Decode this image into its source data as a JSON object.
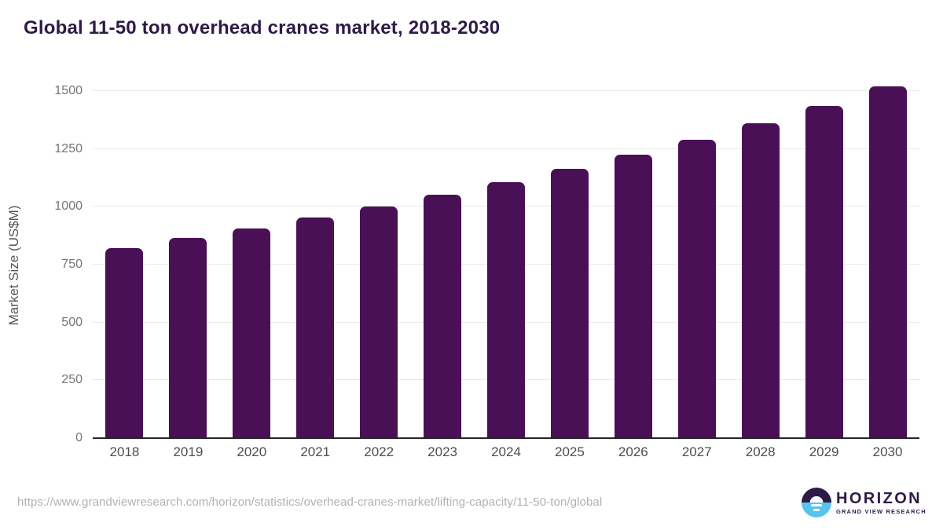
{
  "header": {
    "title": "Global 11-50 ton overhead cranes market, 2018-2030"
  },
  "chart_data": {
    "type": "bar",
    "title": "Global 11-50 ton overhead cranes market, 2018-2030",
    "categories": [
      "2018",
      "2019",
      "2020",
      "2021",
      "2022",
      "2023",
      "2024",
      "2025",
      "2026",
      "2027",
      "2028",
      "2029",
      "2030"
    ],
    "values": [
      822,
      866,
      906,
      955,
      1002,
      1052,
      1107,
      1164,
      1226,
      1291,
      1362,
      1436,
      1521
    ],
    "xlabel": "",
    "ylabel": "Market Size (US$M)",
    "ylim": [
      0,
      1500
    ],
    "yticks": [
      0,
      250,
      500,
      750,
      1000,
      1250,
      1500
    ],
    "grid": true,
    "legend": false,
    "bar_color": "#4a1056"
  },
  "footer": {
    "source_url": "https://www.grandviewresearch.com/horizon/statistics/overhead-cranes-market/lifting-capacity/11-50-ton/global",
    "logo": {
      "brand": "HORIZON",
      "sub_brand": "GRAND VIEW RESEARCH"
    }
  },
  "colors": {
    "title_text": "#2e1a47",
    "bar": "#4a1056",
    "gridline": "#e9e9e9",
    "axis_line": "#262626",
    "y_tick_text": "#757575",
    "x_tick_text": "#4d4d4d",
    "source_text": "#b1b1b6",
    "logo_purple": "#2e1a47",
    "logo_blue": "#58c4ee"
  }
}
